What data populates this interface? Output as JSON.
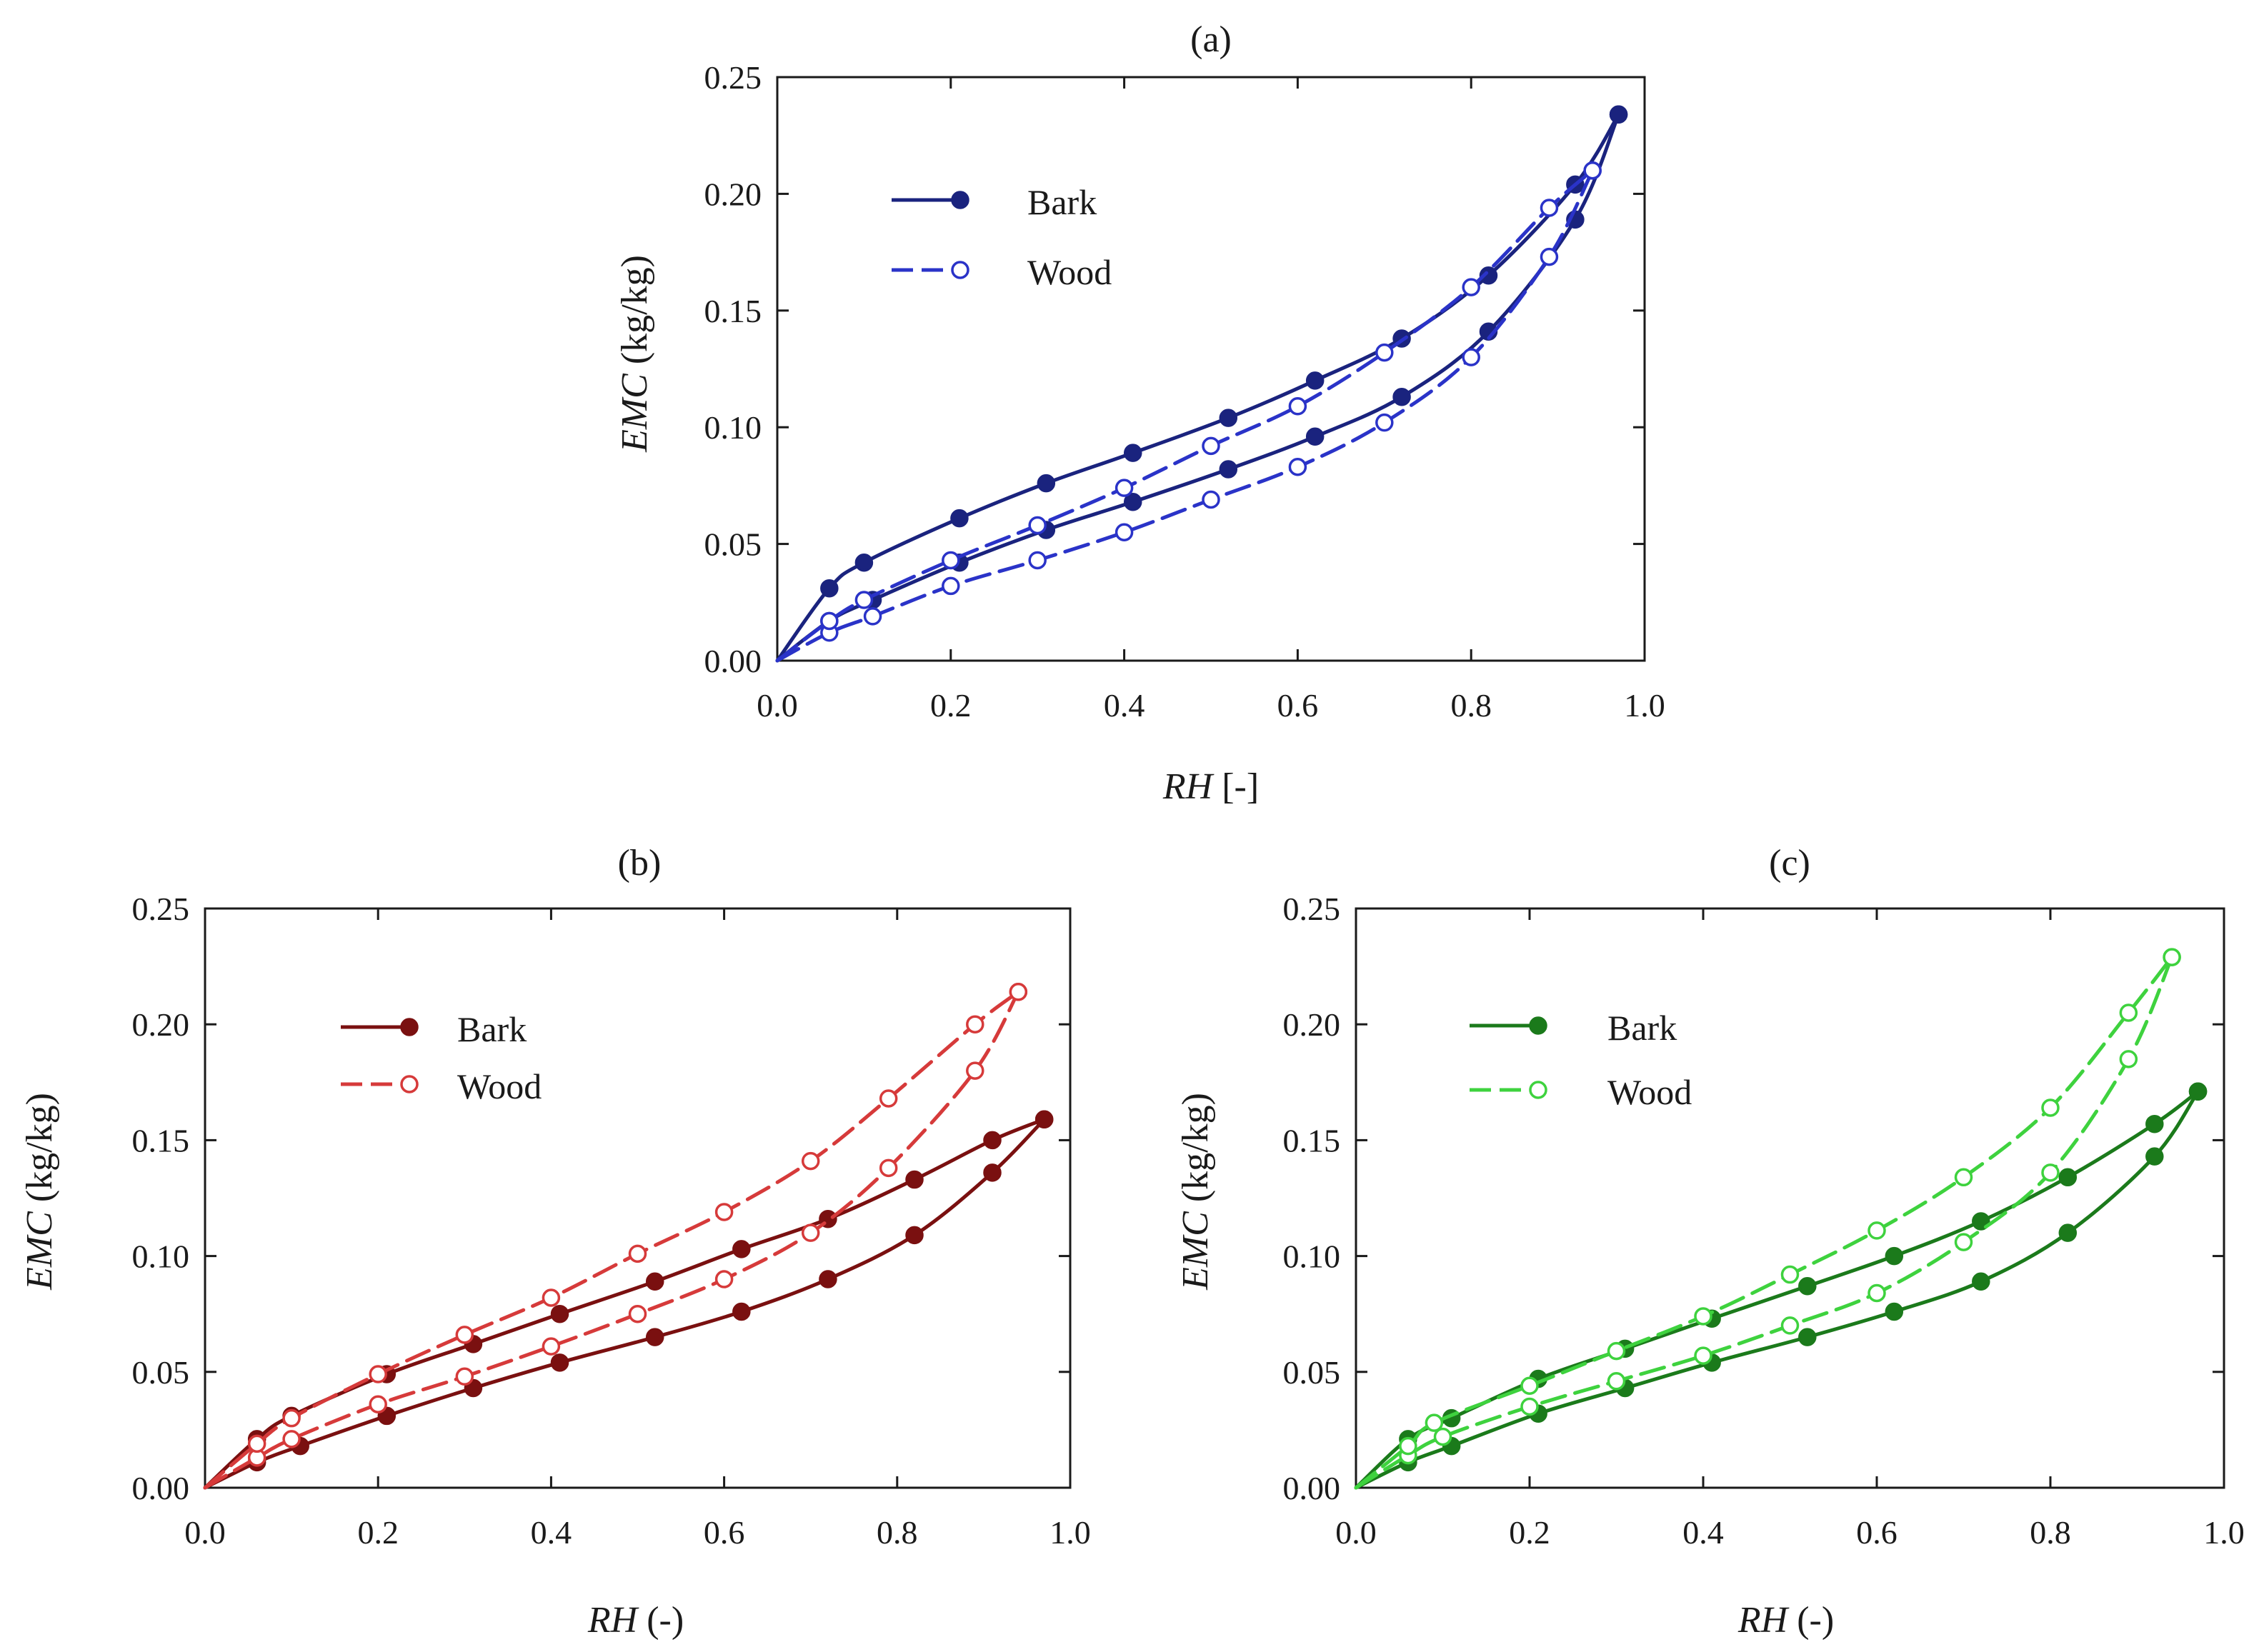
{
  "chart_data": [
    {
      "type": "line",
      "title": "(a)",
      "xlabel_var": "RH",
      "xlabel_unit": " [-]",
      "ylabel_var": "EMC",
      "ylabel_unit": " (kg/kg)",
      "xlim": [
        0,
        1.0
      ],
      "ylim": [
        0,
        0.25
      ],
      "xticks": [
        "0.0",
        "0.2",
        "0.4",
        "0.6",
        "0.8",
        "1.0"
      ],
      "yticks": [
        "0.00",
        "0.05",
        "0.10",
        "0.15",
        "0.20",
        "0.25"
      ],
      "legend_position": "upper-left",
      "colors": {
        "bark": "#1a237e",
        "wood": "#2a33c8"
      },
      "series": [
        {
          "name": "Bark",
          "role": "bark",
          "branch": "adsorption",
          "x": [
            0.06,
            0.11,
            0.21,
            0.31,
            0.41,
            0.52,
            0.62,
            0.72,
            0.82,
            0.92,
            0.97
          ],
          "y": [
            0.017,
            0.026,
            0.042,
            0.056,
            0.068,
            0.082,
            0.096,
            0.113,
            0.141,
            0.189,
            0.234
          ]
        },
        {
          "name": "Bark",
          "role": "bark",
          "branch": "desorption",
          "x": [
            0.06,
            0.1,
            0.21,
            0.31,
            0.41,
            0.52,
            0.62,
            0.72,
            0.82,
            0.92,
            0.97
          ],
          "y": [
            0.031,
            0.042,
            0.061,
            0.076,
            0.089,
            0.104,
            0.12,
            0.138,
            0.165,
            0.204,
            0.234
          ]
        },
        {
          "name": "Wood",
          "role": "wood",
          "branch": "adsorption",
          "x": [
            0.06,
            0.11,
            0.2,
            0.3,
            0.4,
            0.5,
            0.6,
            0.7,
            0.8,
            0.89,
            0.94
          ],
          "y": [
            0.012,
            0.019,
            0.032,
            0.043,
            0.055,
            0.069,
            0.083,
            0.102,
            0.13,
            0.173,
            0.21
          ]
        },
        {
          "name": "Wood",
          "role": "wood",
          "branch": "desorption",
          "x": [
            0.06,
            0.1,
            0.2,
            0.3,
            0.4,
            0.5,
            0.6,
            0.7,
            0.8,
            0.89,
            0.94
          ],
          "y": [
            0.017,
            0.026,
            0.043,
            0.058,
            0.074,
            0.092,
            0.109,
            0.132,
            0.16,
            0.194,
            0.21
          ]
        }
      ]
    },
    {
      "type": "line",
      "title": "(b)",
      "xlabel_var": "RH",
      "xlabel_unit": " (-)",
      "ylabel_var": "EMC",
      "ylabel_unit": " (kg/kg)",
      "xlim": [
        0,
        1.0
      ],
      "ylim": [
        0,
        0.25
      ],
      "xticks": [
        "0.0",
        "0.2",
        "0.4",
        "0.6",
        "0.8",
        "1.0"
      ],
      "yticks": [
        "0.00",
        "0.05",
        "0.10",
        "0.15",
        "0.20",
        "0.25"
      ],
      "legend_position": "upper-left",
      "colors": {
        "bark": "#7a1010",
        "wood": "#d63a3a"
      },
      "series": [
        {
          "name": "Bark",
          "role": "bark",
          "branch": "adsorption",
          "x": [
            0.06,
            0.11,
            0.21,
            0.31,
            0.41,
            0.52,
            0.62,
            0.72,
            0.82,
            0.91,
            0.97
          ],
          "y": [
            0.011,
            0.018,
            0.031,
            0.043,
            0.054,
            0.065,
            0.076,
            0.09,
            0.109,
            0.136,
            0.159
          ]
        },
        {
          "name": "Bark",
          "role": "bark",
          "branch": "desorption",
          "x": [
            0.06,
            0.1,
            0.21,
            0.31,
            0.41,
            0.52,
            0.62,
            0.72,
            0.82,
            0.91,
            0.97
          ],
          "y": [
            0.021,
            0.031,
            0.049,
            0.062,
            0.075,
            0.089,
            0.103,
            0.116,
            0.133,
            0.15,
            0.159
          ]
        },
        {
          "name": "Wood",
          "role": "wood",
          "branch": "adsorption",
          "x": [
            0.06,
            0.1,
            0.2,
            0.3,
            0.4,
            0.5,
            0.6,
            0.7,
            0.79,
            0.89,
            0.94
          ],
          "y": [
            0.013,
            0.021,
            0.036,
            0.048,
            0.061,
            0.075,
            0.09,
            0.11,
            0.138,
            0.18,
            0.214
          ]
        },
        {
          "name": "Wood",
          "role": "wood",
          "branch": "desorption",
          "x": [
            0.06,
            0.1,
            0.2,
            0.3,
            0.4,
            0.5,
            0.6,
            0.7,
            0.79,
            0.89,
            0.94
          ],
          "y": [
            0.019,
            0.03,
            0.049,
            0.066,
            0.082,
            0.101,
            0.119,
            0.141,
            0.168,
            0.2,
            0.214
          ]
        }
      ]
    },
    {
      "type": "line",
      "title": "(c)",
      "xlabel_var": "RH",
      "xlabel_unit": " (-)",
      "ylabel_var": "EMC",
      "ylabel_unit": " (kg/kg)",
      "xlim": [
        0,
        1.0
      ],
      "ylim": [
        0,
        0.25
      ],
      "xticks": [
        "0.0",
        "0.2",
        "0.4",
        "0.6",
        "0.8",
        "1.0"
      ],
      "yticks": [
        "0.00",
        "0.05",
        "0.10",
        "0.15",
        "0.20",
        "0.25"
      ],
      "legend_position": "upper-left",
      "colors": {
        "bark": "#1b7a1b",
        "wood": "#3ed23e"
      },
      "series": [
        {
          "name": "Bark",
          "role": "bark",
          "branch": "adsorption",
          "x": [
            0.06,
            0.11,
            0.21,
            0.31,
            0.41,
            0.52,
            0.62,
            0.72,
            0.82,
            0.92,
            0.97
          ],
          "y": [
            0.011,
            0.018,
            0.032,
            0.043,
            0.054,
            0.065,
            0.076,
            0.089,
            0.11,
            0.143,
            0.171
          ]
        },
        {
          "name": "Bark",
          "role": "bark",
          "branch": "desorption",
          "x": [
            0.06,
            0.11,
            0.21,
            0.31,
            0.41,
            0.52,
            0.62,
            0.72,
            0.82,
            0.92,
            0.97
          ],
          "y": [
            0.021,
            0.03,
            0.047,
            0.06,
            0.073,
            0.087,
            0.1,
            0.115,
            0.134,
            0.157,
            0.171
          ]
        },
        {
          "name": "Wood",
          "role": "wood",
          "branch": "adsorption",
          "x": [
            0.06,
            0.1,
            0.2,
            0.3,
            0.4,
            0.5,
            0.6,
            0.7,
            0.8,
            0.89,
            0.94
          ],
          "y": [
            0.014,
            0.022,
            0.035,
            0.046,
            0.057,
            0.07,
            0.084,
            0.106,
            0.136,
            0.185,
            0.229
          ]
        },
        {
          "name": "Wood",
          "role": "wood",
          "branch": "desorption",
          "x": [
            0.06,
            0.09,
            0.2,
            0.3,
            0.4,
            0.5,
            0.6,
            0.7,
            0.8,
            0.89,
            0.94
          ],
          "y": [
            0.018,
            0.028,
            0.044,
            0.059,
            0.074,
            0.092,
            0.111,
            0.134,
            0.164,
            0.205,
            0.229
          ]
        }
      ]
    }
  ]
}
